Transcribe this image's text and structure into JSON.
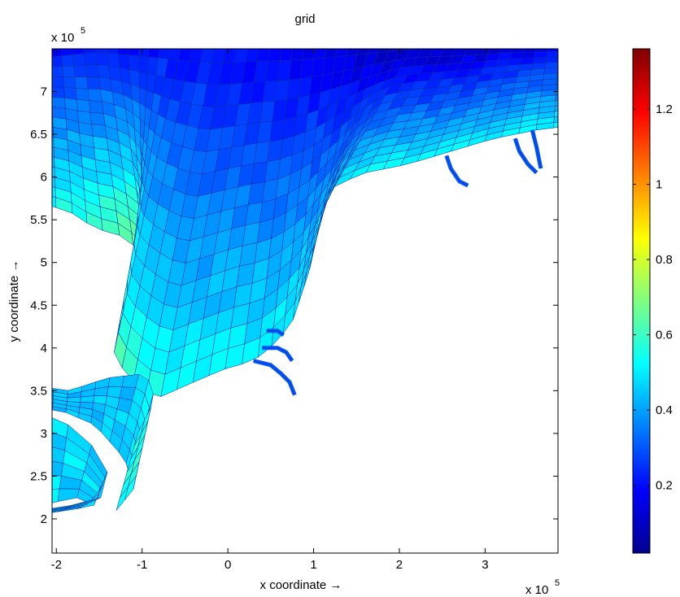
{
  "chart_data": {
    "type": "heatmap",
    "title": "grid",
    "xlabel": "x coordinate →",
    "ylabel": "y coordinate →",
    "x_exponent": "x 10",
    "x_exponent_power": "5",
    "y_exponent": "x 10",
    "y_exponent_power": "5",
    "xlim": [
      -2.05,
      3.85
    ],
    "ylim": [
      1.6,
      7.5
    ],
    "xticks": [
      -2,
      -1,
      0,
      1,
      2,
      3
    ],
    "xtick_labels": [
      "-2",
      "-1",
      "0",
      "1",
      "2",
      "3"
    ],
    "yticks": [
      2,
      2.5,
      3,
      3.5,
      4,
      4.5,
      5,
      5.5,
      6,
      6.5,
      7
    ],
    "ytick_labels": [
      "2",
      "2.5",
      "3",
      "3.5",
      "4",
      "4.5",
      "5",
      "5.5",
      "6",
      "6.5",
      "7"
    ],
    "colorbar": {
      "colormap": "jet",
      "clim": [
        0.02,
        1.36
      ],
      "ticks": [
        0.2,
        0.4,
        0.6,
        0.8,
        1,
        1.2
      ],
      "tick_labels": [
        "0.2",
        "0.4",
        "0.6",
        "0.8",
        "1",
        "1.2"
      ]
    },
    "grid": false
  }
}
